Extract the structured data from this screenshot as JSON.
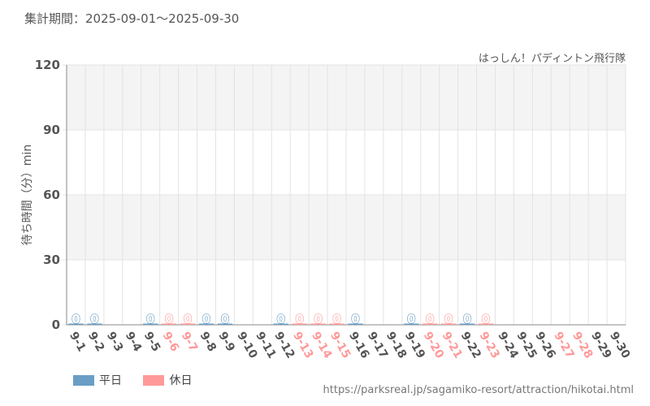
{
  "header": {
    "period": "集計期間：2025-09-01〜2025-09-30",
    "attraction": "はっしん！パディントン飛行隊"
  },
  "colors": {
    "weekday": "#6a9ec5",
    "holiday": "#ff9999",
    "grid": "#e3e3e3",
    "band": "#f4f4f4",
    "axis": "#555555"
  },
  "legend": {
    "weekday_label": "平日",
    "holiday_label": "休日"
  },
  "footer": {
    "source": "https://parksreal.jp/sagamiko-resort/attraction/hikotai.html"
  },
  "chart_data": {
    "type": "bar",
    "ylabel": "待ち時間（分）min",
    "ylim": [
      0,
      120
    ],
    "yticks": [
      "0",
      "30",
      "60",
      "90",
      "120"
    ],
    "categories": [
      "9-1",
      "9-2",
      "9-3",
      "9-4",
      "9-5",
      "9-6",
      "9-7",
      "9-8",
      "9-9",
      "9-10",
      "9-11",
      "9-12",
      "9-13",
      "9-14",
      "9-15",
      "9-16",
      "9-17",
      "9-18",
      "9-19",
      "9-20",
      "9-21",
      "9-22",
      "9-23",
      "9-24",
      "9-25",
      "9-26",
      "9-27",
      "9-28",
      "9-29",
      "9-30"
    ],
    "day_type": [
      "weekday",
      "weekday",
      "weekday",
      "weekday",
      "weekday",
      "holiday",
      "holiday",
      "weekday",
      "weekday",
      "weekday",
      "weekday",
      "weekday",
      "holiday",
      "holiday",
      "holiday",
      "weekday",
      "weekday",
      "weekday",
      "weekday",
      "holiday",
      "holiday",
      "weekday",
      "holiday",
      "weekday",
      "weekday",
      "weekday",
      "holiday",
      "holiday",
      "weekday",
      "weekday"
    ],
    "values": [
      0,
      0,
      null,
      null,
      0,
      0,
      0,
      0,
      0,
      null,
      null,
      0,
      0,
      0,
      0,
      0,
      null,
      null,
      0,
      0,
      0,
      0,
      0,
      null,
      null,
      null,
      null,
      null,
      null,
      null
    ],
    "data_labels": [
      "0",
      "0",
      "",
      "",
      "0",
      "0",
      "0",
      "0",
      "0",
      "",
      "",
      "0",
      "0",
      "0",
      "0",
      "0",
      "",
      "",
      "0",
      "0",
      "0",
      "0",
      "0",
      "",
      "",
      "",
      "",
      "",
      "",
      ""
    ]
  }
}
